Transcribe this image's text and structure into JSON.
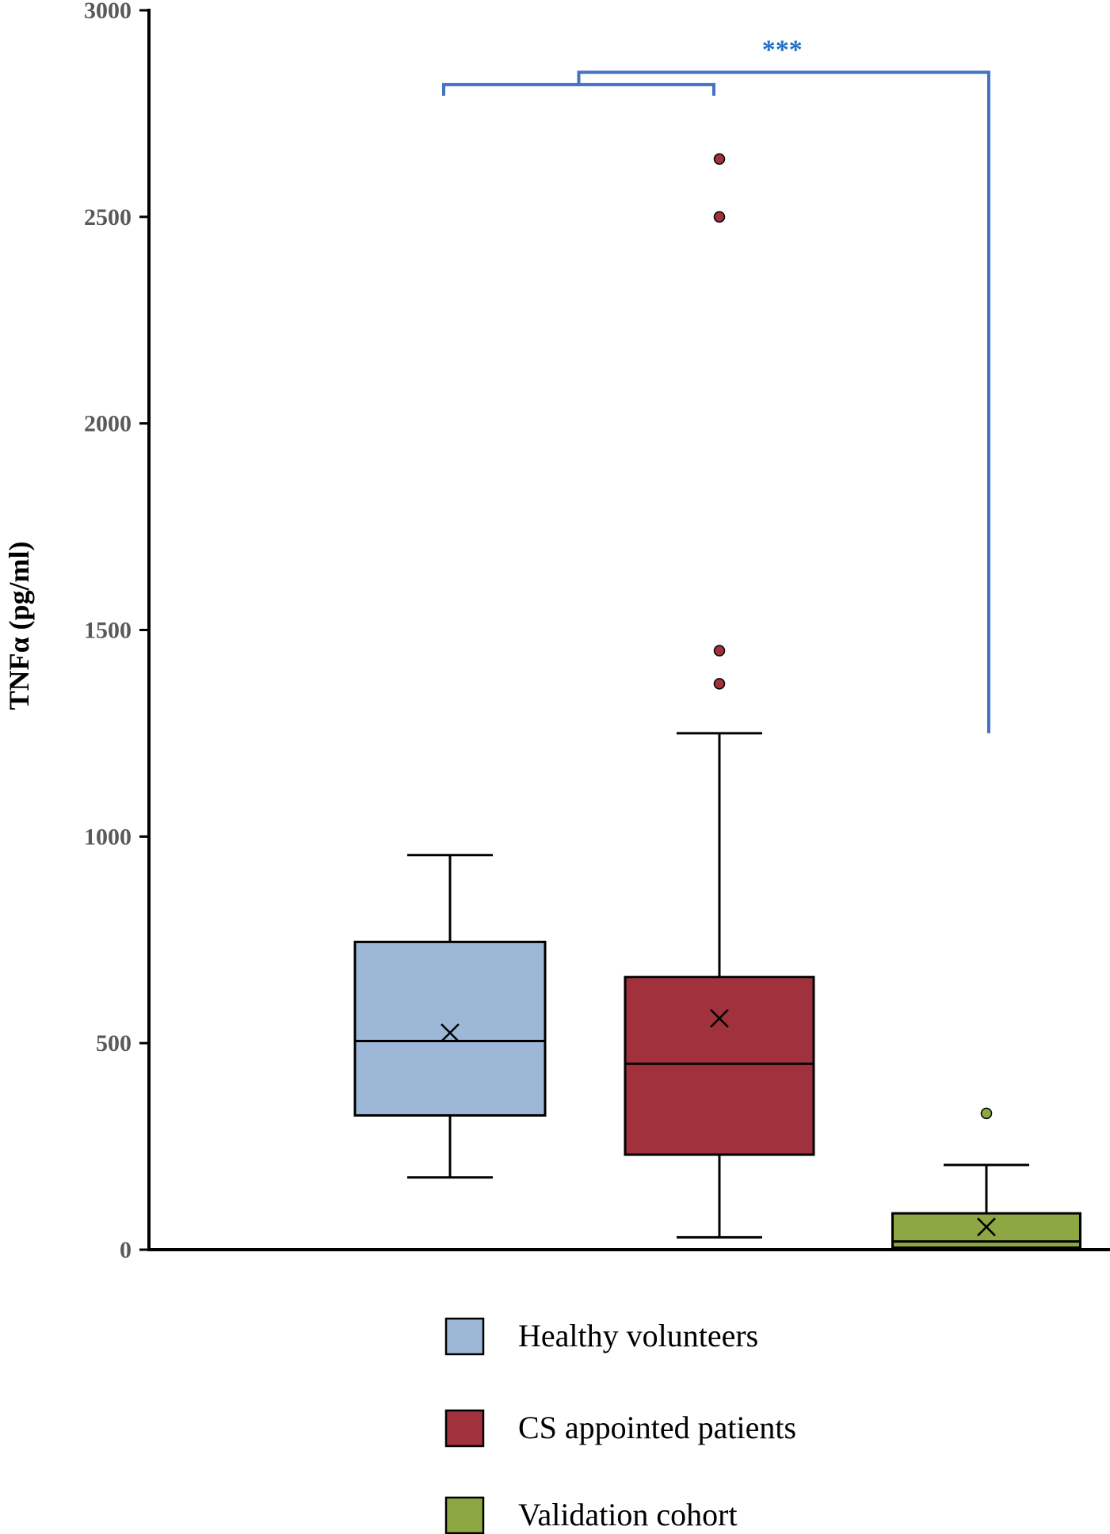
{
  "chart_data": {
    "type": "box",
    "ylabel": "TNFα (pg/ml)",
    "xlabel": "",
    "ylim": [
      0,
      3000
    ],
    "yticks": [
      0,
      500,
      1000,
      1500,
      2000,
      2500,
      3000
    ],
    "grid": false,
    "legend_position": "bottom",
    "series": [
      {
        "name": "Healthy volunteers",
        "color": "#9db8d7",
        "whisker_low": 175,
        "q1": 325,
        "median": 505,
        "q3": 745,
        "whisker_high": 955,
        "mean": 525,
        "outliers": []
      },
      {
        "name": "CS appointed patients",
        "color": "#a1313d",
        "whisker_low": 30,
        "q1": 230,
        "median": 450,
        "q3": 660,
        "whisker_high": 1250,
        "mean": 560,
        "outliers": [
          1370,
          1450,
          2500,
          2640
        ]
      },
      {
        "name": "Validation cohort",
        "color": "#8da843",
        "whisker_low": 0,
        "q1": 5,
        "median": 20,
        "q3": 88,
        "whisker_high": 205,
        "mean": 55,
        "outliers": [
          330
        ]
      }
    ],
    "annotations": [
      {
        "text": "***",
        "color": "#1f6ec4",
        "bracket_color": "#4472c4",
        "groups": [
          [
            "Healthy volunteers",
            "CS appointed patients"
          ],
          [
            "Validation cohort"
          ]
        ],
        "left_bracket_y": 2820,
        "top_bracket_y": 2850,
        "right_drop_to": 1250
      }
    ]
  }
}
